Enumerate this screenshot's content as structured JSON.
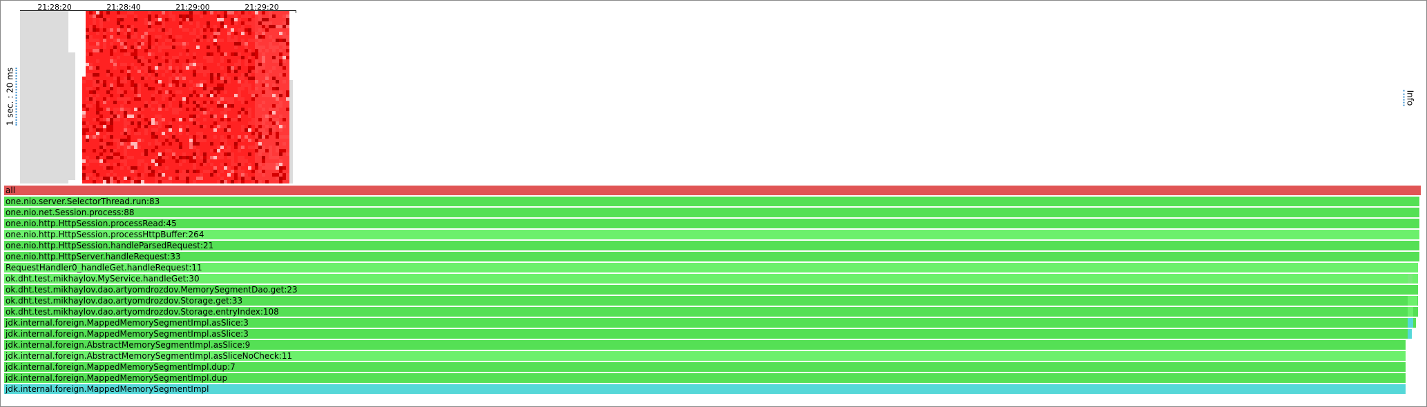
{
  "timeline": {
    "ticks": [
      "21:28:20",
      "21:28:40",
      "21:29:00",
      "21:29:20"
    ]
  },
  "scale_label": "1 sec. : 20 ms",
  "info_label": "Info",
  "colors": {
    "root": "#e05555",
    "green_a": "#55e055",
    "green_b": "#6cf06c",
    "cyan": "#55d8d8",
    "heat_base": "#ff2a2a",
    "heat_empty": "#dcdcdc"
  },
  "flamegraph": {
    "frames": [
      {
        "label": "all",
        "color": "root"
      },
      {
        "label": "one.nio.server.SelectorThread.run:83",
        "color": "green_a"
      },
      {
        "label": "one.nio.net.Session.process:88",
        "color": "green_a"
      },
      {
        "label": "one.nio.http.HttpSession.processRead:45",
        "color": "green_a"
      },
      {
        "label": "one.nio.http.HttpSession.processHttpBuffer:264",
        "color": "green_b"
      },
      {
        "label": "one.nio.http.HttpSession.handleParsedRequest:21",
        "color": "green_a"
      },
      {
        "label": "one.nio.http.HttpServer.handleRequest:33",
        "color": "green_a"
      },
      {
        "label": "RequestHandler0_handleGet.handleRequest:11",
        "color": "green_b"
      },
      {
        "label": "ok.dht.test.mikhaylov.MyService.handleGet:30",
        "color": "green_b"
      },
      {
        "label": "ok.dht.test.mikhaylov.dao.artyomdrozdov.MemorySegmentDao.get:23",
        "color": "green_a"
      },
      {
        "label": "ok.dht.test.mikhaylov.dao.artyomdrozdov.Storage.get:33",
        "color": "green_a"
      },
      {
        "label": "ok.dht.test.mikhaylov.dao.artyomdrozdov.Storage.entryIndex:108",
        "color": "green_a"
      },
      {
        "label": "jdk.internal.foreign.MappedMemorySegmentImpl.asSlice:3",
        "color": "green_a"
      },
      {
        "label": "jdk.internal.foreign.MappedMemorySegmentImpl.asSlice:3",
        "color": "green_a"
      },
      {
        "label": "jdk.internal.foreign.AbstractMemorySegmentImpl.asSlice:9",
        "color": "green_a"
      },
      {
        "label": "jdk.internal.foreign.AbstractMemorySegmentImpl.asSliceNoCheck:11",
        "color": "green_b"
      },
      {
        "label": "jdk.internal.foreign.MappedMemorySegmentImpl.dup:7",
        "color": "green_a"
      },
      {
        "label": "jdk.internal.foreign.MappedMemorySegmentImpl.dup",
        "color": "green_a"
      },
      {
        "label": "jdk.internal.foreign.MappedMemorySegmentImpl",
        "color": "cyan"
      }
    ]
  }
}
